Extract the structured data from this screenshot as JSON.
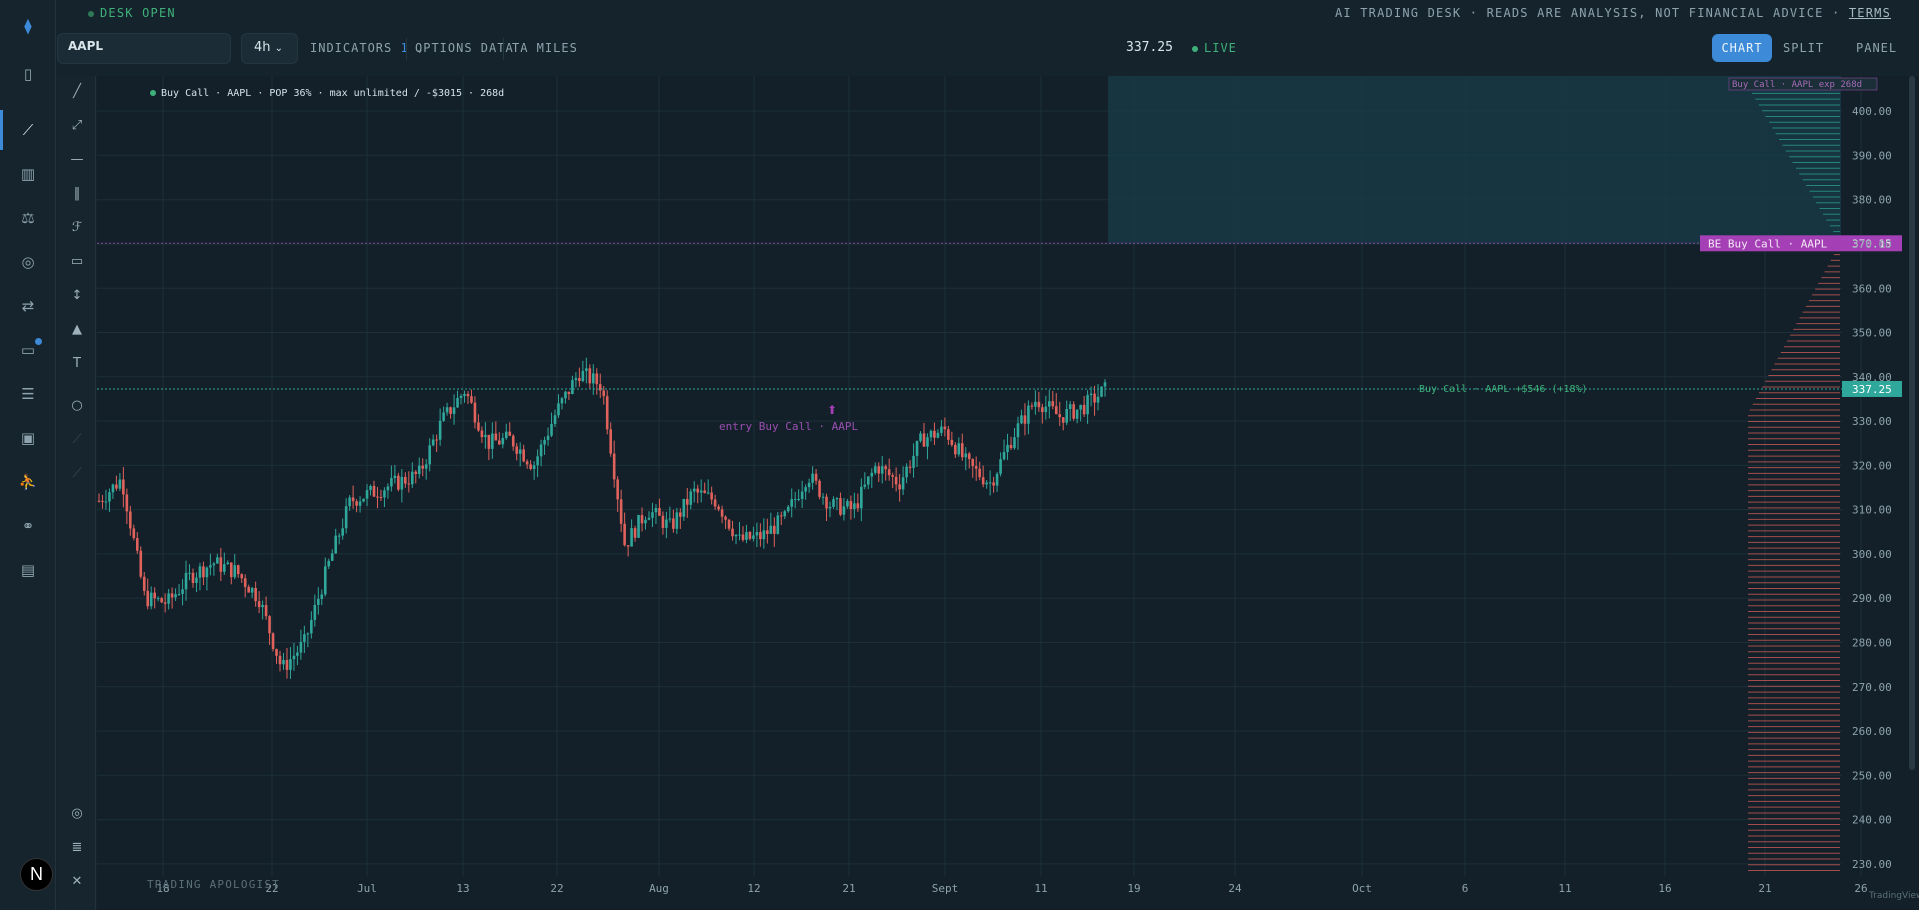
{
  "status": {
    "desk": "DESK OPEN",
    "disclaimer": "AI TRADING DESK · READS ARE ANALYSIS, NOT FINANCIAL ADVICE ·",
    "terms": "TERMS"
  },
  "toolbar": {
    "symbol": "AAPL",
    "interval": "4h",
    "indicators_label": "INDICATORS",
    "indicators_count": "1",
    "options_data": "OPTIONS DATA",
    "ta_miles": "TA MILES",
    "last_price": "337.25",
    "live": "LIVE",
    "views": {
      "chart": "CHART",
      "split": "SPLIT",
      "panel": "PANEL"
    }
  },
  "rail_icons": [
    "logo-icon",
    "sidebar-toggle-icon",
    "chart-line-icon",
    "analytics-icon",
    "scale-icon",
    "gauge-icon",
    "swap-icon",
    "wallet-icon",
    "journal-icon",
    "terminal-icon",
    "person-icon",
    "link-icon",
    "card-icon"
  ],
  "avatar_letter": "N",
  "colors": {
    "up": "#2fa79b",
    "down": "#e0625c",
    "accent": "#3d8bd8",
    "be": "#a53fb5",
    "live": "#3fb07a"
  },
  "chart_data": {
    "type": "candlestick",
    "symbol": "AAPL",
    "ylim": [
      225,
      405
    ],
    "y_ticks": [
      "400.00",
      "390.00",
      "380.00",
      "370.00",
      "360.00",
      "350.00",
      "340.00",
      "330.00",
      "320.00",
      "310.00",
      "300.00",
      "290.00",
      "280.00",
      "270.00",
      "260.00",
      "250.00",
      "240.00",
      "230.00"
    ],
    "x_ticks": [
      "18",
      "22",
      "Jul",
      "13",
      "22",
      "Aug",
      "12",
      "21",
      "Sept",
      "11",
      "19",
      "24",
      "Oct",
      "6",
      "11",
      "16",
      "21",
      "26"
    ],
    "price_series": [
      [
        "Jun 16",
        312
      ],
      [
        "Jun 17",
        317
      ],
      [
        "Jun 18",
        290
      ],
      [
        "Jun 20",
        289
      ],
      [
        "Jun 22",
        295
      ],
      [
        "Jun 25",
        298
      ],
      [
        "Jun 27",
        296
      ],
      [
        "Jun 29",
        290
      ],
      [
        "Jun 30",
        274
      ],
      [
        "Jul 2",
        280
      ],
      [
        "Jul 4",
        297
      ],
      [
        "Jul 7",
        312
      ],
      [
        "Jul 9",
        314
      ],
      [
        "Jul 11",
        316
      ],
      [
        "Jul 13",
        318
      ],
      [
        "Jul 15",
        330
      ],
      [
        "Jul 17",
        337
      ],
      [
        "Jul 19",
        325
      ],
      [
        "Jul 21",
        326
      ],
      [
        "Jul 23",
        320
      ],
      [
        "Jul 25",
        332
      ],
      [
        "Jul 27",
        341
      ],
      [
        "Jul 29",
        338
      ],
      [
        "Jul 31",
        302
      ],
      [
        "Aug 2",
        310
      ],
      [
        "Aug 4",
        306
      ],
      [
        "Aug 6",
        314
      ],
      [
        "Aug 8",
        312
      ],
      [
        "Aug 10",
        303
      ],
      [
        "Aug 12",
        304
      ],
      [
        "Aug 14",
        308
      ],
      [
        "Aug 17",
        318
      ],
      [
        "Aug 19",
        311
      ],
      [
        "Aug 22",
        310
      ],
      [
        "Aug 25",
        320
      ],
      [
        "Aug 28",
        316
      ],
      [
        "Aug 31",
        326
      ],
      [
        "Sep 2",
        328
      ],
      [
        "Sep 4",
        320
      ],
      [
        "Sep 7",
        316
      ],
      [
        "Sep 9",
        327
      ],
      [
        "Sep 11",
        335
      ],
      [
        "Sep 13",
        331
      ],
      [
        "Sep 15",
        333
      ],
      [
        "Sep 16",
        337
      ]
    ],
    "legend": "Buy Call · AAPL · POP 36% · max unlimited / -$3015 · 268d",
    "breakeven": {
      "price": 370.15,
      "label": "BE Buy Call · AAPL",
      "value_label": "370.15"
    },
    "current": {
      "price": 337.25,
      "label": "Buy Call · AAPL +$546 (+18%)",
      "value_label": "337.25"
    },
    "entry_label": "entry Buy Call · AAPL",
    "expiry_label": "Buy Call · AAPL exp 268d",
    "watermark": "TRADING APOLOGIST",
    "attribution": "TradingView"
  }
}
